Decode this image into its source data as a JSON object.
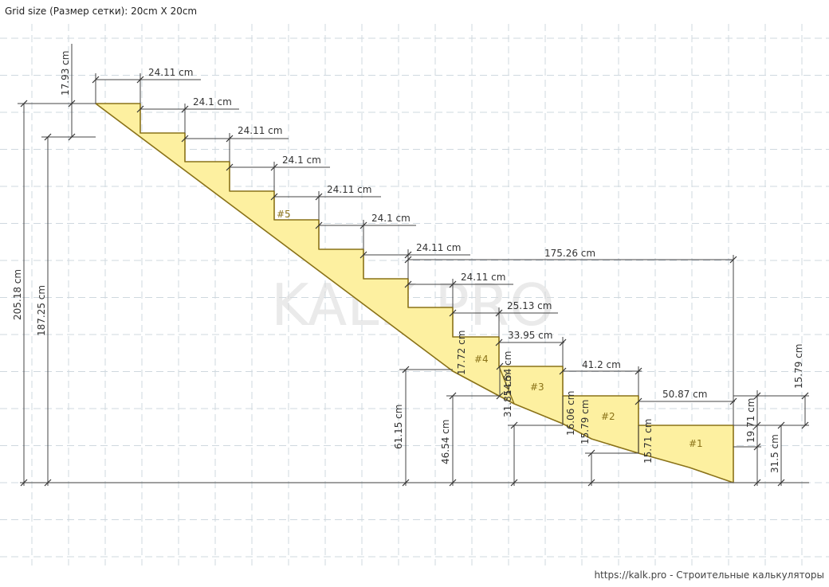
{
  "header": {
    "grid_size": "Grid size (Размер сетки): 20cm X 20cm"
  },
  "footer": {
    "site": "https://kalk.pro - Строительные калькуляторы"
  },
  "watermark": "KALK.PRO",
  "colors": {
    "stair_fill": "#fdf0a0",
    "stair_stroke": "#8a7218",
    "grid": "#cfd8df",
    "dimension": "#444444"
  },
  "dimensions": {
    "top_rise": "17.93 cm",
    "run_1": "24.11 cm",
    "run_2": "24.1 cm",
    "run_3": "24.11 cm",
    "run_4": "24.1 cm",
    "run_5": "24.11 cm",
    "run_6": "24.1 cm",
    "run_7": "24.11 cm",
    "run_8": "24.11 cm",
    "run_9": "25.13 cm",
    "run_10": "33.95 cm",
    "run_11": "41.2 cm",
    "run_12": "50.87 cm",
    "winder_span": "175.26 cm",
    "total_height": "205.18 cm",
    "height_2": "187.25 cm",
    "height_61": "61.15 cm",
    "height_46": "46.54 cm",
    "height_31_left": "31.85 cm",
    "height_15_left": "15.79 cm",
    "rise_17": "17.72 cm",
    "rise_14": "14.54 cm",
    "rise_16": "16.06 cm",
    "rise_15": "15.71 cm",
    "rise_right_15": "15.79 cm",
    "rise_right_19": "19.71 cm",
    "height_right_31": "31.5 cm"
  },
  "steps": {
    "s1": "#1",
    "s2": "#2",
    "s3": "#3",
    "s4": "#4",
    "s5": "#5"
  }
}
